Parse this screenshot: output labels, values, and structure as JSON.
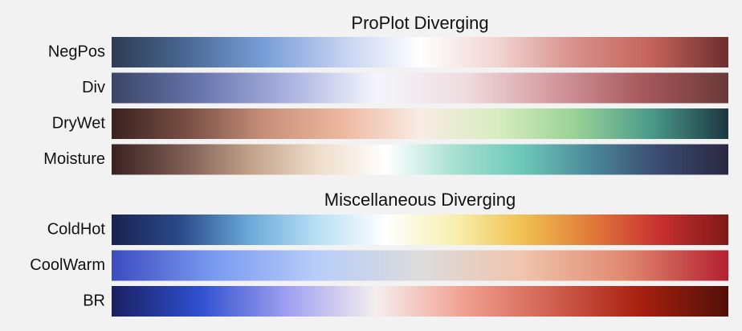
{
  "sections": [
    {
      "title": "ProPlot Diverging",
      "colormaps": [
        {
          "name": "NegPos",
          "colors": [
            "#2e3b52",
            "#4b6a96",
            "#7a9fd8",
            "#c5d1f0",
            "#ffffff",
            "#f0d5d2",
            "#d8908a",
            "#c4635a",
            "#6b2e2e"
          ]
        },
        {
          "name": "Div",
          "colors": [
            "#3a4565",
            "#6875ad",
            "#a9b1df",
            "#f4f5fc",
            "#f0dde0",
            "#d49aa0",
            "#a85a5e",
            "#6a3838"
          ]
        },
        {
          "name": "DryWet",
          "colors": [
            "#3a2220",
            "#7a5045",
            "#c8907a",
            "#eeb8a0",
            "#f8ece4",
            "#d8ecc0",
            "#9ad296",
            "#4a9a8a",
            "#1c3640"
          ]
        },
        {
          "name": "Moisture",
          "colors": [
            "#3a2222",
            "#7a5a50",
            "#c0a088",
            "#eedcc8",
            "#ffffff",
            "#a8e0d0",
            "#6cc8b8",
            "#4a8898",
            "#3a4a70",
            "#2a2840"
          ]
        }
      ]
    },
    {
      "title": "Miscellaneous Diverging",
      "colormaps": [
        {
          "name": "ColdHot",
          "colors": [
            "#1a2250",
            "#2a4a8a",
            "#6aa8d8",
            "#b8e0f4",
            "#ffffff",
            "#f8f0b0",
            "#f0c050",
            "#e07a3a",
            "#c83030",
            "#801818"
          ]
        },
        {
          "name": "CoolWarm",
          "colors": [
            "#3c4cc0",
            "#7a9af0",
            "#b8cdf8",
            "#dcdcdc",
            "#f0c4ac",
            "#e08870",
            "#b42030"
          ]
        },
        {
          "name": "BR",
          "colors": [
            "#1a2060",
            "#3050d0",
            "#a0a0f0",
            "#f4eeee",
            "#f0a090",
            "#d06050",
            "#a82010",
            "#501008"
          ]
        }
      ]
    }
  ]
}
